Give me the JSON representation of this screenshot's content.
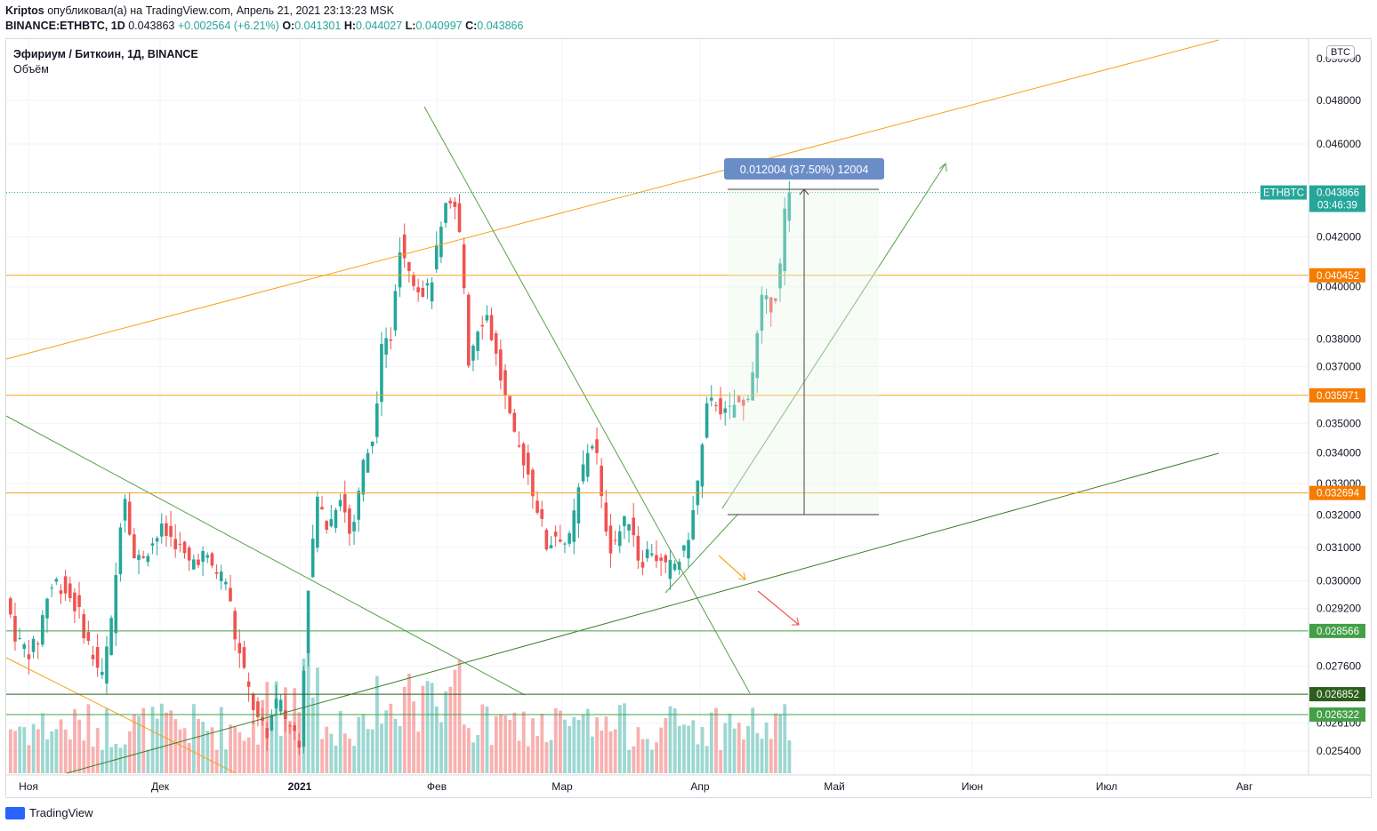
{
  "header": {
    "author": "Kriptos",
    "published_text": " опубликовал(а) на TradingView.com, Апрель 21, 2021 23:13:23 MSK",
    "symbol": "BINANCE:ETHBTC, 1D",
    "last": "0.043863",
    "change": "+0.002564 (+6.21%)",
    "o_label": "O:",
    "o": "0.041301",
    "h_label": "H:",
    "h": "0.044027",
    "l_label": "L:",
    "l": "0.040997",
    "c_label": "C:",
    "c": "0.043866"
  },
  "legend": {
    "title": "Эфириум / Биткоин, 1Д, BINANCE",
    "volume": "Объём"
  },
  "currency_button": "BTC",
  "footer": {
    "brand": "TradingView"
  },
  "colors": {
    "up": "#26a69a",
    "down": "#ef5350",
    "orange": "#f7a21b",
    "green_line": "#4caf50",
    "dark_green": "#2b5f1b",
    "blue_badge": "#6a8dc7",
    "axis_text": "#131722"
  },
  "chart_data": {
    "type": "candlestick",
    "y_scale": "log",
    "ylim": [
      0.0248,
      0.0505
    ],
    "y_ticks": [
      "0.048000",
      "0.046000",
      "0.042000",
      "0.040000",
      "0.038000",
      "0.037000",
      "0.035000",
      "0.034000",
      "0.033000",
      "0.032000",
      "0.031000",
      "0.030000",
      "0.029200",
      "0.027600",
      "0.026100",
      "0.025400"
    ],
    "y_top_tick_partial": "0.050000",
    "x_labels": [
      "Ноя",
      "Дек",
      "2021",
      "Фев",
      "Мар",
      "Апр",
      "Май",
      "Июн",
      "Июл",
      "Авг"
    ],
    "price_badges": [
      {
        "label": "ETHBTC",
        "value": "0.043866",
        "countdown": "03:46:39",
        "color": "#26a69a"
      },
      {
        "value": "0.040452",
        "color": "#f57c00"
      },
      {
        "value": "0.035971",
        "color": "#f57c00"
      },
      {
        "value": "0.032694",
        "color": "#f57c00"
      },
      {
        "value": "0.028566",
        "color": "#43a047"
      },
      {
        "value": "0.026852",
        "color": "#2b5f1b"
      },
      {
        "value": "0.026322",
        "color": "#43a047"
      }
    ],
    "measure_label": "0.012004 (37.50%) 12004"
  }
}
